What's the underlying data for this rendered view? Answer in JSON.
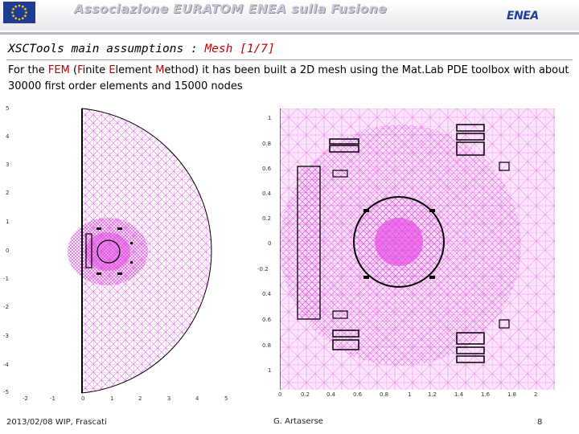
{
  "header": {
    "association_title": "Associazione EURATOM ENEA sulla Fusione",
    "logo_text": "ENEA",
    "eu_flag_icon": "eu-flag-icon"
  },
  "slide": {
    "title_prefix": "XSCTools main assumptions : ",
    "title_rest": "Mesh [1/7]",
    "body": {
      "t1": "For the ",
      "fem": "FEM",
      "t2": " (",
      "f": "F",
      "t3": "inite ",
      "e": "E",
      "t4": "lement ",
      "m": "M",
      "t5": "ethod) it has been built a 2D mesh using the Mat.Lab PDE toolbox with about 30000 first order elements and 15000 nodes"
    }
  },
  "left_plot": {
    "x_ticks": [
      "-2",
      "-1",
      "0",
      "1",
      "2",
      "3",
      "4",
      "5"
    ],
    "y_ticks": [
      "5",
      "4",
      "3",
      "2",
      "1",
      "0",
      "-1",
      "-2",
      "-3",
      "-4",
      "-5"
    ]
  },
  "right_plot": {
    "x_ticks": [
      "0",
      "0.2",
      "0.4",
      "0.6",
      "0.8",
      "1",
      "1.2",
      "1.4",
      "1.6",
      "1.8",
      "2"
    ],
    "y_ticks": [
      "1",
      "0.8",
      "0.6",
      "0.4",
      "0.2",
      "0",
      "-0.2",
      "0.4",
      "0.6",
      "0.8",
      "1"
    ]
  },
  "footer": {
    "date_place": "2013/02/08   WIP, Frascati",
    "author": "G. Artaserse",
    "page_number": "8"
  },
  "colors": {
    "mesh": "#e070e0",
    "title_red": "#c00000",
    "logo_blue": "#1d3f9a"
  }
}
